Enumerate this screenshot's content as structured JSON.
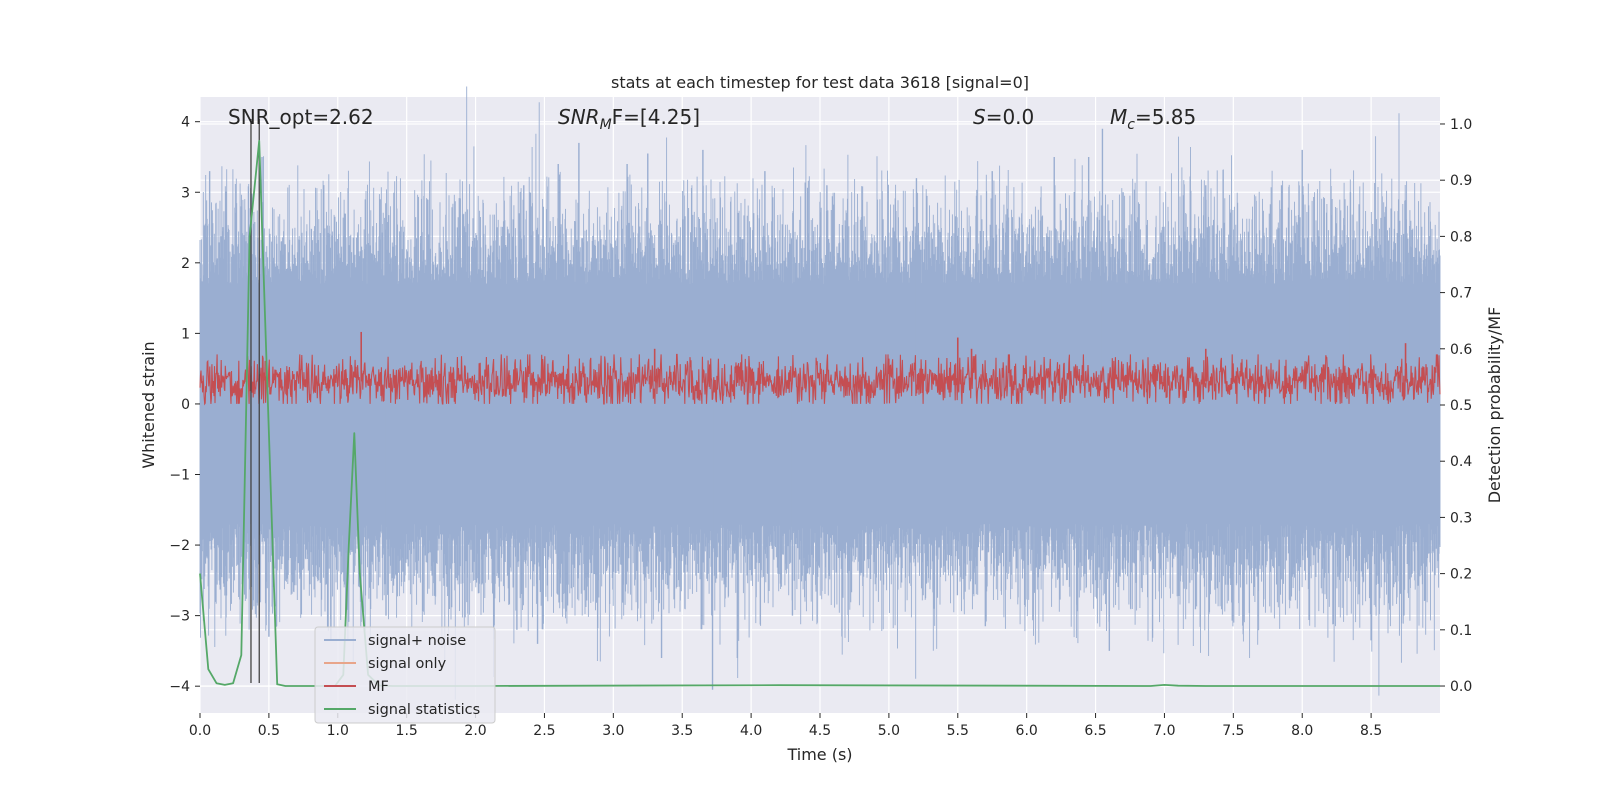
{
  "chart_data": {
    "type": "line",
    "title": "stats at each timestep for test data 3618 [signal=0]",
    "xlabel": "Time (s)",
    "ylabel": "Whitened strain",
    "y2label": "Detection probability/MF",
    "xlim": [
      0,
      9.0
    ],
    "ylim": [
      -4.38,
      4.35
    ],
    "y2lim": [
      -0.048,
      1.048
    ],
    "x_ticks": [
      0.0,
      0.5,
      1.0,
      1.5,
      2.0,
      2.5,
      3.0,
      3.5,
      4.0,
      4.5,
      5.0,
      5.5,
      6.0,
      6.5,
      7.0,
      7.5,
      8.0,
      8.5
    ],
    "x_tick_labels": [
      "0.0",
      "0.5",
      "1.0",
      "1.5",
      "2.0",
      "2.5",
      "3.0",
      "3.5",
      "4.0",
      "4.5",
      "5.0",
      "5.5",
      "6.0",
      "6.5",
      "7.0",
      "7.5",
      "8.0",
      "8.5"
    ],
    "y_ticks": [
      4,
      3,
      2,
      1,
      0,
      -1,
      -2,
      -3,
      -4
    ],
    "y_tick_labels": [
      "4",
      "3",
      "2",
      "1",
      "0",
      "−1",
      "−2",
      "−3",
      "−4"
    ],
    "y2_ticks": [
      1.0,
      0.9,
      0.8,
      0.7,
      0.6,
      0.5,
      0.4,
      0.3,
      0.2,
      0.1,
      0.0
    ],
    "y2_tick_labels": [
      "1.0",
      "0.9",
      "0.8",
      "0.7",
      "0.6",
      "0.5",
      "0.4",
      "0.3",
      "0.2",
      "0.1",
      "0.0"
    ],
    "grid": true,
    "legend_position": "lower-left",
    "annotations": [
      {
        "text": "SNR_opt=2.62"
      },
      {
        "text": "SNR",
        "sub": "M",
        "suffix": "F=[4.25]",
        "italic": true
      },
      {
        "text": "S",
        "suffix": "=0.0",
        "italic": true
      },
      {
        "text": "M",
        "sub": "c",
        "suffix": "=5.85",
        "italic": true
      }
    ],
    "vlines": [
      0.37,
      0.43
    ],
    "series": [
      {
        "name": "signal+ noise",
        "color": "#9aaed1",
        "axis": "left",
        "style": "noise",
        "sample_rate": 2048,
        "envelope_typical": 2.0,
        "peaks": [
          {
            "x": 0.07,
            "y": 3.3
          },
          {
            "x": 0.3,
            "y": 2.8
          },
          {
            "x": 0.45,
            "y": 3.5
          },
          {
            "x": 1.2,
            "y": 2.9
          },
          {
            "x": 1.65,
            "y": 2.9
          },
          {
            "x": 2.35,
            "y": 3.1
          },
          {
            "x": 2.6,
            "y": 3.4
          },
          {
            "x": 2.75,
            "y": 3.7
          },
          {
            "x": 3.1,
            "y": 3.4
          },
          {
            "x": 3.25,
            "y": 3.55
          },
          {
            "x": 3.65,
            "y": 3.6
          },
          {
            "x": 4.1,
            "y": 3.3
          },
          {
            "x": 4.55,
            "y": 3.1
          },
          {
            "x": 5.2,
            "y": 3.2
          },
          {
            "x": 5.75,
            "y": 3.3
          },
          {
            "x": 6.2,
            "y": 3.5
          },
          {
            "x": 6.45,
            "y": 3.5
          },
          {
            "x": 6.55,
            "y": 3.9
          },
          {
            "x": 6.7,
            "y": 3.0
          },
          {
            "x": 7.3,
            "y": 3.1
          },
          {
            "x": 7.85,
            "y": 3.1
          },
          {
            "x": 8.0,
            "y": 3.6
          },
          {
            "x": 8.35,
            "y": 3.0
          },
          {
            "x": 8.7,
            "y": 2.9
          },
          {
            "x": 0.95,
            "y": -3.35
          },
          {
            "x": 1.35,
            "y": -3.0
          },
          {
            "x": 2.3,
            "y": -3.2
          },
          {
            "x": 2.45,
            "y": -3.4
          },
          {
            "x": 3.35,
            "y": -3.6
          },
          {
            "x": 3.72,
            "y": -4.05
          },
          {
            "x": 3.9,
            "y": -3.6
          },
          {
            "x": 5.7,
            "y": -3.15
          },
          {
            "x": 6.6,
            "y": -3.5
          },
          {
            "x": 8.5,
            "y": -3.35
          },
          {
            "x": 0.5,
            "y": -3.3
          },
          {
            "x": 4.3,
            "y": -3.0
          }
        ]
      },
      {
        "name": "signal only",
        "color": "#e8a58a",
        "axis": "left",
        "values": []
      },
      {
        "name": "MF",
        "color": "#c44e52",
        "axis": "right",
        "style": "noise",
        "baseline": 0.542,
        "band": [
          0.5,
          0.6
        ],
        "peaks": [
          {
            "x": 1.17,
            "y": 0.63
          },
          {
            "x": 5.5,
            "y": 0.62
          },
          {
            "x": 5.6,
            "y": 0.6
          },
          {
            "x": 7.3,
            "y": 0.6
          },
          {
            "x": 8.75,
            "y": 0.61
          },
          {
            "x": 3.3,
            "y": 0.6
          }
        ]
      },
      {
        "name": "signal statistics",
        "color": "#55a868",
        "axis": "right",
        "x": [
          0.0,
          0.06,
          0.12,
          0.18,
          0.24,
          0.3,
          0.36,
          0.43,
          0.5,
          0.56,
          0.62,
          0.68,
          0.74,
          0.8,
          0.86,
          0.92,
          0.98,
          1.04,
          1.08,
          1.12,
          1.16,
          1.22,
          1.3,
          1.4,
          1.6,
          2.0,
          4.2,
          6.9,
          7.0,
          7.1,
          7.3,
          9.0
        ],
        "values": [
          0.2,
          0.03,
          0.005,
          0.002,
          0.005,
          0.055,
          0.8,
          0.97,
          0.45,
          0.003,
          0.0,
          0.0,
          0.0,
          0.0,
          0.0,
          0.0,
          0.0,
          0.02,
          0.25,
          0.45,
          0.2,
          0.02,
          0.001,
          0.0,
          0.0,
          0.0,
          0.0015,
          0.0,
          0.002,
          0.0005,
          0.0,
          0.0
        ]
      }
    ]
  }
}
